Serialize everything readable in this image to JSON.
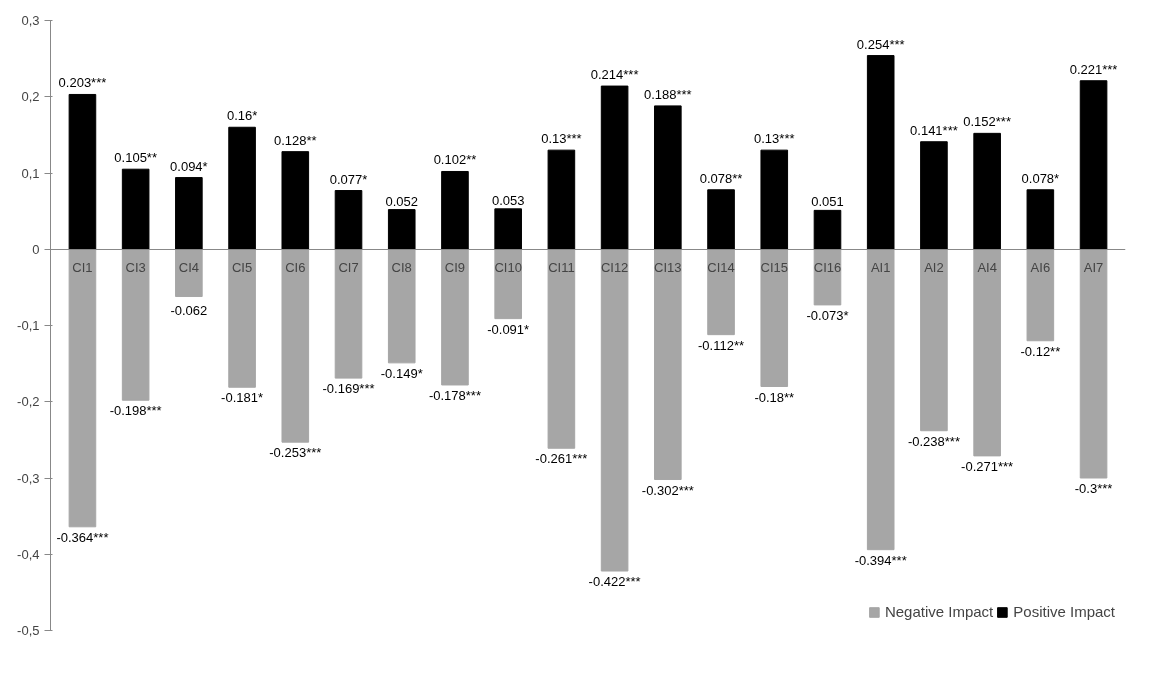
{
  "chart_data": {
    "type": "bar",
    "stacked": true,
    "legend": "bottom right",
    "categories": [
      "CI1",
      "CI3",
      "CI4",
      "CI5",
      "CI6",
      "CI7",
      "CI8",
      "CI9",
      "CI10",
      "CI11",
      "CI12",
      "CI13",
      "CI14",
      "CI15",
      "CI16",
      "AI1",
      "AI2",
      "AI4",
      "AI6",
      "AI7"
    ],
    "ylim": [
      -0.5,
      0.3
    ],
    "yticks": [
      {
        "value": -0.5,
        "label": "-0,5"
      },
      {
        "value": -0.4,
        "label": "-0,4"
      },
      {
        "value": -0.3,
        "label": "-0,3"
      },
      {
        "value": -0.2,
        "label": "-0,2"
      },
      {
        "value": -0.1,
        "label": "-0,1"
      },
      0,
      {
        "value": 0.1,
        "label": "0,1"
      },
      {
        "value": 0.2,
        "label": "0,2"
      },
      {
        "value": 0.3,
        "label": "0,3"
      }
    ],
    "series": [
      {
        "name": "Negative Impact",
        "color": "#a6a6a6",
        "values": [
          -0.364,
          -0.198,
          -0.062,
          -0.181,
          -0.253,
          -0.169,
          -0.149,
          -0.178,
          -0.091,
          -0.261,
          -0.422,
          -0.302,
          -0.112,
          -0.18,
          -0.073,
          -0.394,
          -0.238,
          -0.271,
          -0.12,
          -0.3
        ],
        "value_labels": [
          "-0.364***",
          "-0.198***",
          "-0.062",
          "-0.181*",
          "-0.253***",
          "-0.169***",
          "-0.149*",
          "-0.178***",
          "-0.091*",
          "-0.261***",
          "-0.422***",
          "-0.302***",
          "-0.112**",
          "-0.18**",
          "-0.073*",
          "-0.394***",
          "-0.238***",
          "-0.271***",
          "-0.12**",
          "-0.3***"
        ]
      },
      {
        "name": "Positive Impact",
        "color": "#000000",
        "values": [
          0.203,
          0.105,
          0.094,
          0.16,
          0.128,
          0.077,
          0.052,
          0.102,
          0.053,
          0.13,
          0.214,
          0.188,
          0.078,
          0.13,
          0.051,
          0.254,
          0.141,
          0.152,
          0.078,
          0.221
        ],
        "value_labels": [
          "0.203***",
          "0.105**",
          "0.094*",
          "0.16*",
          "0.128**",
          "0.077*",
          "0.052",
          "0.102**",
          "0.053",
          "0.13***",
          "0.214***",
          "0.188***",
          "0.078**",
          "0.13***",
          "0.051",
          "0.254***",
          "0.141***",
          "0.152***",
          "0.078*",
          "0.221***"
        ]
      }
    ]
  }
}
